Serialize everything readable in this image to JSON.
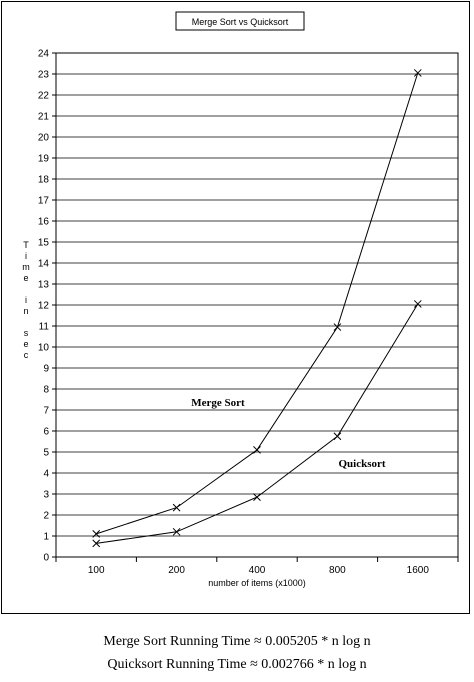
{
  "chart_data": {
    "type": "line",
    "title": "Merge Sort vs Quicksort",
    "xlabel": "number of items (x1000)",
    "ylabel": "Time in sec",
    "ylabel_lines": [
      "T",
      "i",
      "m",
      "e",
      "",
      "i",
      "n",
      "",
      "s",
      "e",
      "c"
    ],
    "categories": [
      "100",
      "200",
      "400",
      "800",
      "1600"
    ],
    "ylim": [
      0,
      24
    ],
    "yticks": [
      0,
      1,
      2,
      3,
      4,
      5,
      6,
      7,
      8,
      9,
      10,
      11,
      12,
      13,
      14,
      15,
      16,
      17,
      18,
      19,
      20,
      21,
      22,
      23,
      24
    ],
    "grid": true,
    "marker": "x",
    "series": [
      {
        "name": "Merge Sort",
        "values": [
          1.1,
          2.35,
          5.1,
          10.95,
          23.05
        ]
      },
      {
        "name": "Quicksort",
        "values": [
          0.65,
          1.2,
          2.85,
          5.75,
          12.05
        ]
      }
    ]
  },
  "formulas": {
    "merge": "Merge Sort Running Time ≈ 0.005205 * n log n",
    "quick": "Quicksort Running Time ≈ 0.002766 * n log n"
  },
  "colors": {
    "line": "#000000",
    "grid": "#000000",
    "background": "#ffffff"
  }
}
